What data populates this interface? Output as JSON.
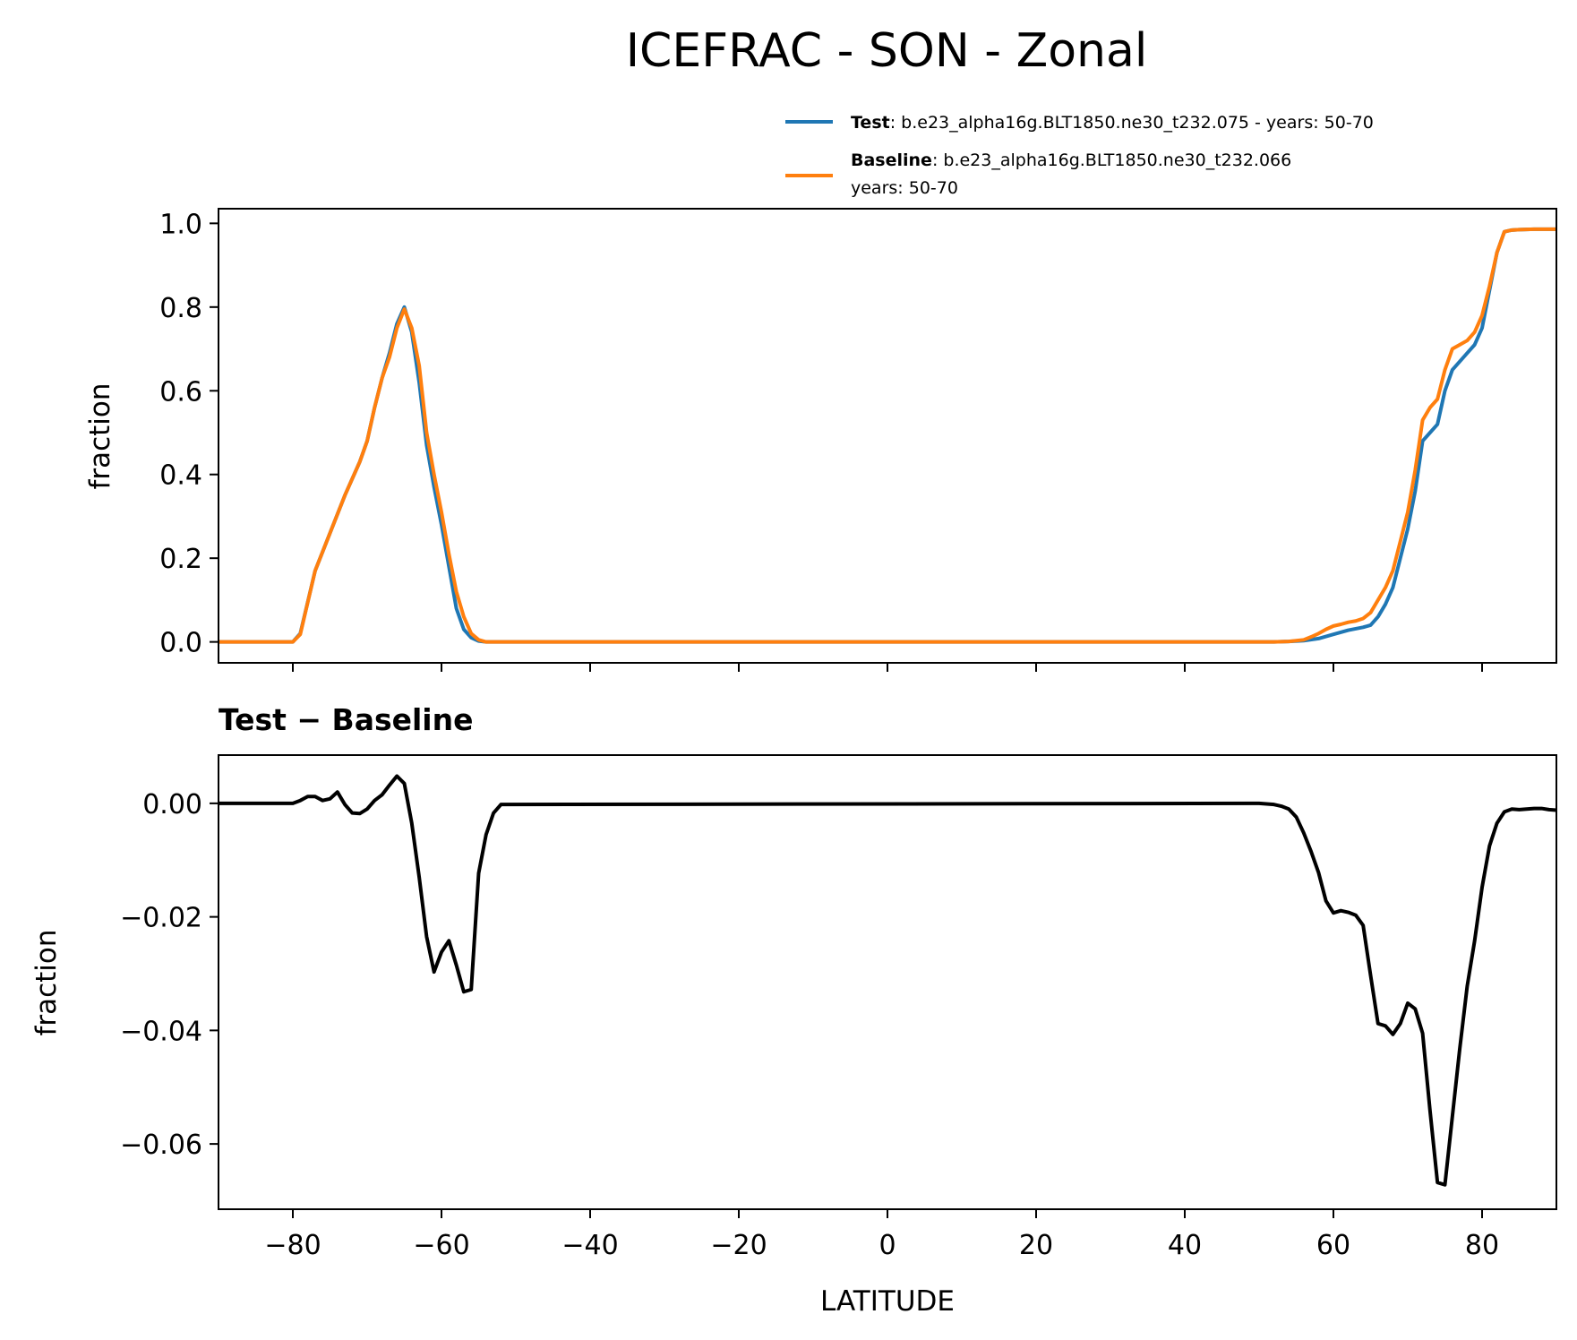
{
  "chart_data": [
    {
      "type": "line",
      "title": "ICEFRAC - SON - Zonal",
      "xlabel": "",
      "ylabel": "fraction",
      "xlim": [
        -90,
        90
      ],
      "ylim": [
        -0.05,
        1.035
      ],
      "yticks": [
        0.0,
        0.2,
        0.4,
        0.6,
        0.8,
        1.0
      ],
      "ytick_labels": [
        "0.0",
        "0.2",
        "0.4",
        "0.6",
        "0.8",
        "1.0"
      ],
      "legend": {
        "position": "top-right",
        "entries": [
          {
            "label": "Test",
            "text": ": b.e23_alpha16g.BLT1850.ne30_t232.075 - years: 50-70",
            "color": "#1f77b4"
          },
          {
            "label": "Baseline",
            "text": ": b.e23_alpha16g.BLT1850.ne30_t232.066",
            "text2": "years: 50-70",
            "color": "#ff7f0e"
          }
        ]
      },
      "series": [
        {
          "name": "Test",
          "color": "#1f77b4",
          "x": [
            -90,
            -80,
            -79,
            -77,
            -75,
            -73,
            -71,
            -70,
            -69,
            -68,
            -67,
            -66,
            -65,
            -64,
            -63,
            -62,
            -61,
            -60,
            -59,
            -58,
            -57,
            -56,
            -55,
            -54,
            -53,
            -52,
            -50,
            52,
            54,
            56,
            58,
            60,
            62,
            64,
            65,
            66,
            67,
            68,
            69,
            70,
            71,
            72,
            73,
            74,
            75,
            76,
            77,
            78,
            79,
            80,
            81,
            82,
            83,
            84,
            85,
            87,
            90
          ],
          "y": [
            0,
            0,
            0.02,
            0.17,
            0.26,
            0.35,
            0.43,
            0.48,
            0.56,
            0.63,
            0.69,
            0.76,
            0.8,
            0.74,
            0.62,
            0.47,
            0.37,
            0.28,
            0.18,
            0.08,
            0.03,
            0.01,
            0.002,
            0,
            0,
            0,
            0,
            0,
            0.001,
            0.003,
            0.008,
            0.018,
            0.028,
            0.035,
            0.04,
            0.06,
            0.09,
            0.13,
            0.2,
            0.27,
            0.36,
            0.48,
            0.5,
            0.52,
            0.6,
            0.65,
            0.67,
            0.69,
            0.71,
            0.75,
            0.84,
            0.93,
            0.98,
            0.984,
            0.985,
            0.986,
            0.986
          ]
        },
        {
          "name": "Baseline",
          "color": "#ff7f0e",
          "x": [
            -90,
            -80,
            -79,
            -77,
            -75,
            -73,
            -71,
            -70,
            -69,
            -68,
            -67,
            -66,
            -65,
            -64,
            -63,
            -62,
            -61,
            -60,
            -59,
            -58,
            -57,
            -56,
            -55,
            -54,
            -53,
            -52,
            -50,
            52,
            54,
            56,
            57,
            58,
            59,
            60,
            61,
            62,
            63,
            64,
            65,
            66,
            67,
            68,
            69,
            70,
            71,
            72,
            73,
            74,
            75,
            76,
            77,
            78,
            79,
            80,
            81,
            82,
            83,
            84,
            85,
            87,
            90
          ],
          "y": [
            0,
            0,
            0.018,
            0.17,
            0.26,
            0.35,
            0.43,
            0.48,
            0.56,
            0.63,
            0.68,
            0.75,
            0.795,
            0.75,
            0.66,
            0.5,
            0.4,
            0.31,
            0.21,
            0.12,
            0.06,
            0.02,
            0.005,
            0,
            0,
            0,
            0,
            0,
            0.001,
            0.005,
            0.012,
            0.02,
            0.03,
            0.038,
            0.042,
            0.047,
            0.05,
            0.056,
            0.07,
            0.1,
            0.13,
            0.17,
            0.24,
            0.31,
            0.41,
            0.53,
            0.56,
            0.58,
            0.65,
            0.7,
            0.71,
            0.72,
            0.74,
            0.78,
            0.85,
            0.93,
            0.98,
            0.984,
            0.985,
            0.986,
            0.986
          ]
        }
      ]
    },
    {
      "type": "line",
      "title": "Test − Baseline",
      "xlabel": "LATITUDE",
      "ylabel": "fraction",
      "xlim": [
        -90,
        90
      ],
      "ylim": [
        -0.0715,
        0.0085
      ],
      "xticks": [
        -80,
        -60,
        -40,
        -20,
        0,
        20,
        40,
        60,
        80
      ],
      "xtick_labels": [
        "−80",
        "−60",
        "−40",
        "−20",
        "0",
        "20",
        "40",
        "60",
        "80"
      ],
      "yticks": [
        0.0,
        -0.02,
        -0.04,
        -0.06
      ],
      "ytick_labels": [
        "0.00",
        "−0.02",
        "−0.04",
        "−0.06"
      ],
      "series": [
        {
          "name": "Test − Baseline",
          "color": "#000000",
          "x": [
            -90,
            -80,
            -79,
            -78,
            -77,
            -76,
            -75,
            -74,
            -73,
            -72,
            -71,
            -70,
            -69,
            -68,
            -67,
            -66,
            -65,
            -64,
            -63,
            -62,
            -61,
            -60,
            -59,
            -58,
            -57,
            -56,
            -55,
            -54,
            -53,
            -52,
            50,
            52,
            53,
            54,
            55,
            56,
            57,
            58,
            59,
            60,
            61,
            62,
            63,
            64,
            65,
            66,
            67,
            68,
            69,
            70,
            71,
            72,
            73,
            74,
            75,
            76,
            77,
            78,
            79,
            80,
            81,
            82,
            83,
            84,
            85,
            87,
            88,
            89,
            90
          ],
          "y": [
            0,
            0,
            0.0005,
            0.0012,
            0.0012,
            0.0005,
            0.0008,
            0.002,
            -0.0002,
            -0.0017,
            -0.0018,
            -0.001,
            0.0005,
            0.0015,
            0.0032,
            0.0048,
            0.0035,
            -0.0035,
            -0.013,
            -0.0235,
            -0.0297,
            -0.0262,
            -0.0242,
            -0.0285,
            -0.0332,
            -0.0328,
            -0.0123,
            -0.0055,
            -0.0017,
            -0.0002,
            0,
            -0.0002,
            -0.0005,
            -0.001,
            -0.0024,
            -0.0052,
            -0.0085,
            -0.0122,
            -0.0172,
            -0.0193,
            -0.0189,
            -0.0192,
            -0.0197,
            -0.0215,
            -0.0303,
            -0.0388,
            -0.0392,
            -0.0407,
            -0.0388,
            -0.0352,
            -0.0362,
            -0.0405,
            -0.0542,
            -0.0668,
            -0.0672,
            -0.0552,
            -0.0432,
            -0.0322,
            -0.0242,
            -0.0148,
            -0.0075,
            -0.0035,
            -0.0015,
            -0.001,
            -0.0011,
            -0.0009,
            -0.0009,
            -0.0011,
            -0.0012
          ]
        }
      ]
    }
  ]
}
